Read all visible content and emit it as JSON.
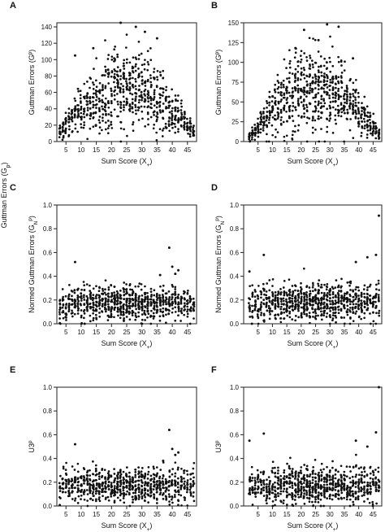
{
  "figure": {
    "shared_ylabel": "Guttman Errors (G_p)"
  },
  "chart_data": [
    {
      "panel": "A",
      "type": "scatter",
      "xlabel": "Sum Score (X_+)",
      "ylabel": "Guttman Errors (G^p)",
      "xlim": [
        2,
        48
      ],
      "ylim": [
        0,
        145
      ],
      "xticks": [
        5,
        10,
        15,
        20,
        25,
        30,
        35,
        40,
        45
      ],
      "yticks": [
        0,
        20,
        40,
        60,
        80,
        100,
        120,
        140
      ],
      "y_shape": {
        "type": "arch",
        "peak": 65,
        "floor": 8,
        "spread": 26,
        "max": 145
      },
      "highlight_points": [
        [
          23,
          145
        ],
        [
          28,
          140
        ],
        [
          31,
          134
        ],
        [
          35,
          126
        ],
        [
          14,
          114
        ],
        [
          8,
          105
        ]
      ]
    },
    {
      "panel": "B",
      "type": "scatter",
      "xlabel": "Sum Score (X_+)",
      "ylabel": "Guttman Errors (G^p)",
      "xlim": [
        0,
        48
      ],
      "ylim": [
        0,
        150
      ],
      "xticks": [
        5,
        10,
        15,
        20,
        25,
        30,
        35,
        40,
        45
      ],
      "yticks": [
        0,
        25,
        50,
        75,
        100,
        125,
        150
      ],
      "y_shape": {
        "type": "arch",
        "peak": 70,
        "floor": 4,
        "spread": 28,
        "max": 150
      },
      "highlight_points": [
        [
          29,
          148
        ],
        [
          33,
          145
        ],
        [
          26,
          128
        ],
        [
          21,
          141
        ],
        [
          18,
          118
        ],
        [
          38,
          105
        ]
      ]
    },
    {
      "panel": "C",
      "type": "scatter",
      "xlabel": "Sum Score (X_+)",
      "ylabel": "Normed Guttman Errors (G_N^p)",
      "xlim": [
        2,
        48
      ],
      "ylim": [
        0,
        1.0
      ],
      "xticks": [
        5,
        10,
        15,
        20,
        25,
        30,
        35,
        40,
        45
      ],
      "yticks": [
        0.0,
        0.2,
        0.4,
        0.6,
        0.8,
        1.0
      ],
      "y_shape": {
        "type": "band",
        "center": 0.17,
        "sd": 0.07,
        "max": 0.42
      },
      "highlight_points": [
        [
          39,
          0.64
        ],
        [
          8,
          0.52
        ],
        [
          40,
          0.48
        ],
        [
          42,
          0.45
        ],
        [
          41,
          0.42
        ],
        [
          36,
          0.41
        ]
      ]
    },
    {
      "panel": "D",
      "type": "scatter",
      "xlabel": "Sum Score (X_+)",
      "ylabel": "Normed Guttman Errors (G_N^p)",
      "xlim": [
        0,
        48
      ],
      "ylim": [
        0,
        1.0
      ],
      "xticks": [
        5,
        10,
        15,
        20,
        25,
        30,
        35,
        40,
        45
      ],
      "yticks": [
        0.0,
        0.2,
        0.4,
        0.6,
        0.8,
        1.0
      ],
      "y_shape": {
        "type": "band",
        "center": 0.18,
        "sd": 0.08,
        "max": 0.48
      },
      "highlight_points": [
        [
          47,
          0.91
        ],
        [
          7,
          0.58
        ],
        [
          43,
          0.56
        ],
        [
          2,
          0.44
        ],
        [
          46,
          0.58
        ],
        [
          39,
          0.52
        ]
      ]
    },
    {
      "panel": "E",
      "type": "scatter",
      "xlabel": "Sum Score (X_+)",
      "ylabel": "U3^p",
      "xlim": [
        2,
        48
      ],
      "ylim": [
        0,
        1.0
      ],
      "xticks": [
        5,
        10,
        15,
        20,
        25,
        30,
        35,
        40,
        45
      ],
      "yticks": [
        0.0,
        0.2,
        0.4,
        0.6,
        0.8,
        1.0
      ],
      "y_shape": {
        "type": "band",
        "center": 0.17,
        "sd": 0.07,
        "max": 0.42
      },
      "highlight_points": [
        [
          39,
          0.64
        ],
        [
          8,
          0.52
        ],
        [
          40,
          0.48
        ],
        [
          42,
          0.45
        ],
        [
          41,
          0.43
        ],
        [
          37,
          0.38
        ]
      ]
    },
    {
      "panel": "F",
      "type": "scatter",
      "xlabel": "Sum Score (X_+)",
      "ylabel": "U3^p",
      "xlim": [
        0,
        48
      ],
      "ylim": [
        0,
        1.0
      ],
      "xticks": [
        5,
        10,
        15,
        20,
        25,
        30,
        35,
        40,
        45
      ],
      "yticks": [
        0.0,
        0.2,
        0.4,
        0.6,
        0.8,
        1.0
      ],
      "y_shape": {
        "type": "band",
        "center": 0.17,
        "sd": 0.08,
        "max": 0.45
      },
      "highlight_points": [
        [
          47,
          1.0
        ],
        [
          7,
          0.61
        ],
        [
          46,
          0.62
        ],
        [
          2,
          0.55
        ],
        [
          39,
          0.55
        ],
        [
          43,
          0.5
        ]
      ]
    }
  ]
}
